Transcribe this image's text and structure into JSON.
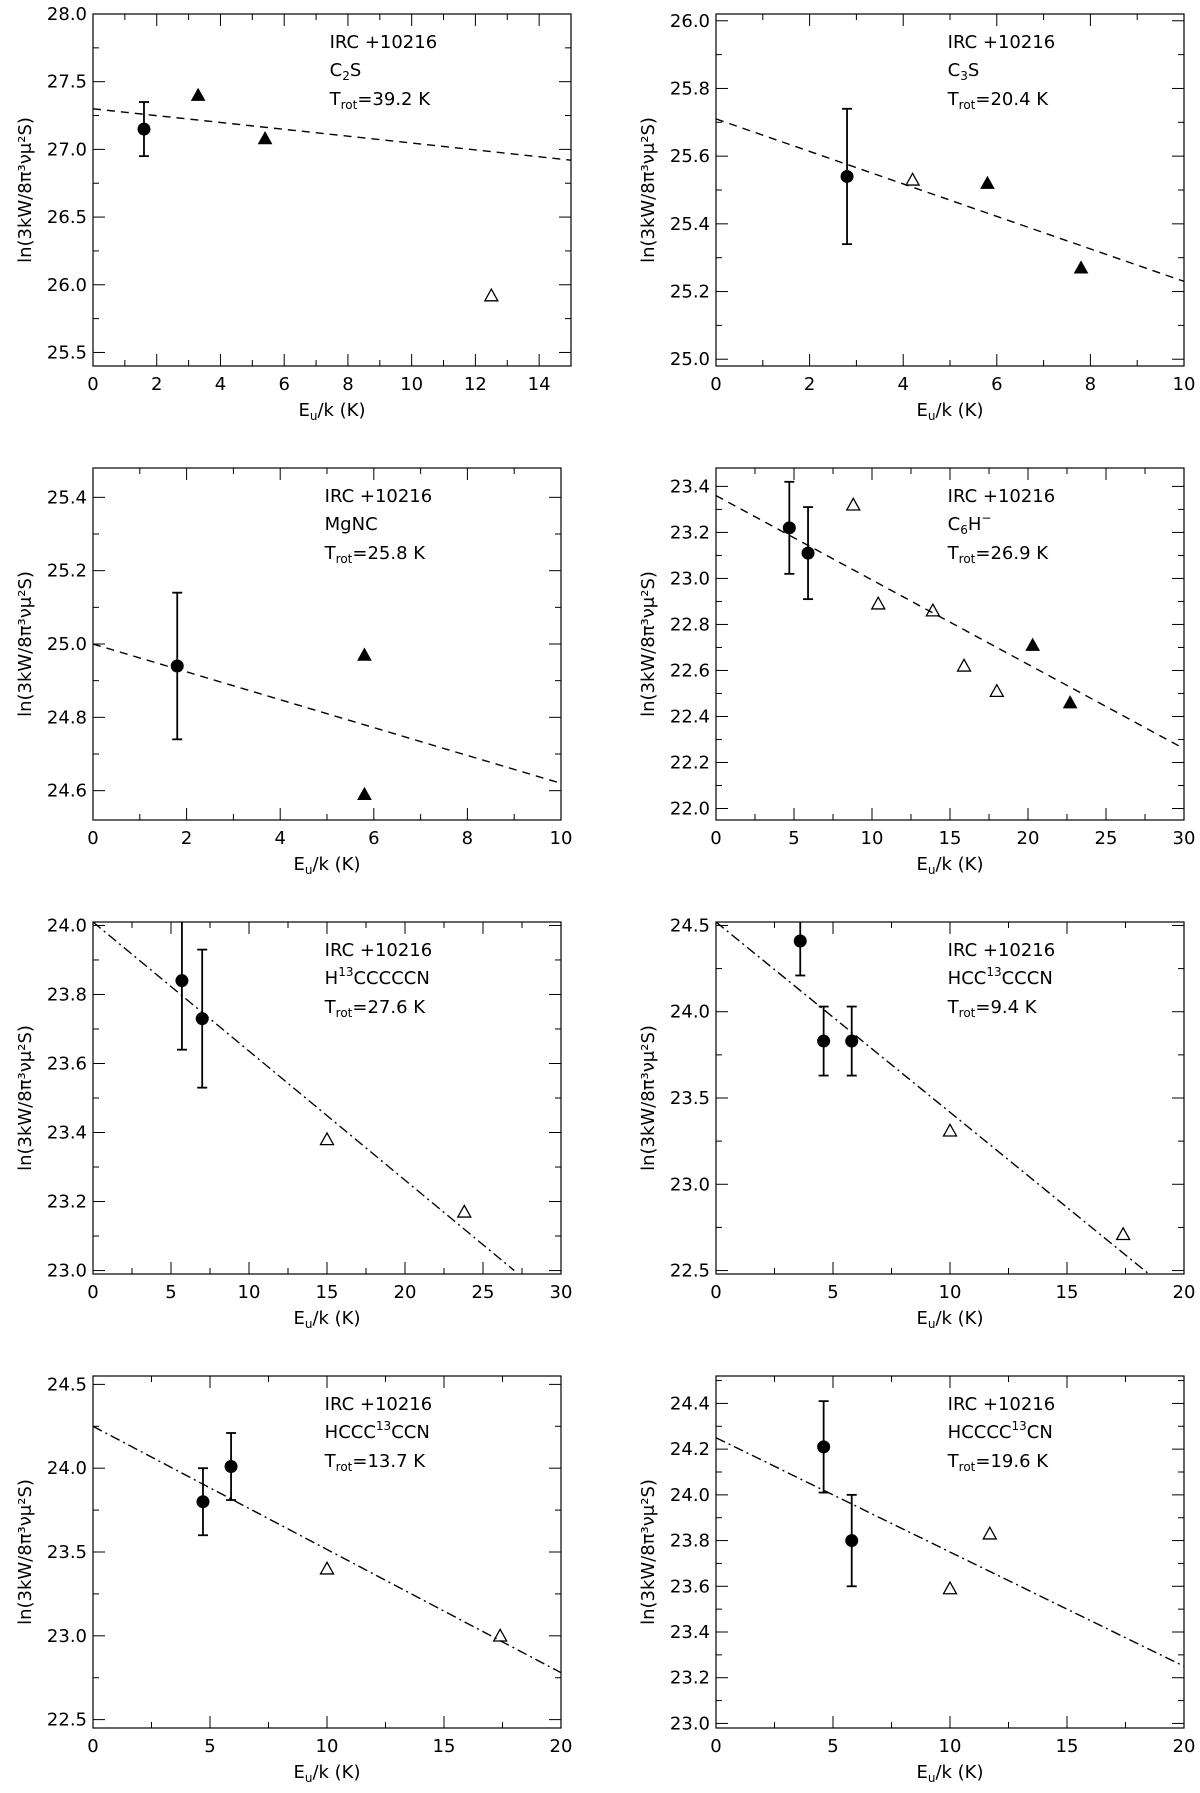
{
  "chart_data": [
    {
      "type": "scatter",
      "title": "",
      "source": "IRC +10216",
      "molecule": "C2S",
      "molecule_parts": [
        [
          "C",
          ""
        ],
        [
          "2",
          "sub"
        ],
        [
          "S",
          ""
        ]
      ],
      "trot_label": "=39.2 K",
      "xlabel_main": "E",
      "xlabel_sub": "u",
      "xlabel_rest": "/k (K)",
      "ylabel": "ln(3kW/8π³νμ²S)",
      "xlim": [
        0,
        15
      ],
      "ylim": [
        25.4,
        28.0
      ],
      "xticks": [
        0,
        2,
        4,
        6,
        8,
        10,
        12,
        14
      ],
      "yticks": [
        25.5,
        26.0,
        26.5,
        27.0,
        27.5,
        28.0
      ],
      "fit": {
        "style": "dashed",
        "points": [
          [
            0,
            27.3
          ],
          [
            15,
            26.92
          ]
        ]
      },
      "series": [
        {
          "name": "filled circles",
          "marker": "circle",
          "points": [
            [
              1.6,
              27.15,
              0.2
            ]
          ]
        },
        {
          "name": "filled triangles",
          "marker": "triangle-filled",
          "points": [
            [
              3.3,
              27.4
            ],
            [
              5.4,
              27.08
            ]
          ]
        },
        {
          "name": "open triangles",
          "marker": "triangle-open",
          "points": [
            [
              12.5,
              25.92
            ]
          ]
        }
      ]
    },
    {
      "type": "scatter",
      "title": "",
      "source": "IRC +10216",
      "molecule": "C3S",
      "molecule_parts": [
        [
          "C",
          ""
        ],
        [
          "3",
          "sub"
        ],
        [
          "S",
          ""
        ]
      ],
      "trot_label": "=20.4 K",
      "xlabel_main": "E",
      "xlabel_sub": "u",
      "xlabel_rest": "/k (K)",
      "ylabel": "ln(3kW/8π³νμ²S)",
      "xlim": [
        0,
        10
      ],
      "ylim": [
        24.98,
        26.02
      ],
      "xticks": [
        0,
        2,
        4,
        6,
        8,
        10
      ],
      "yticks": [
        25.0,
        25.2,
        25.4,
        25.6,
        25.8,
        26.0
      ],
      "fit": {
        "style": "dashed",
        "points": [
          [
            0,
            25.71
          ],
          [
            10,
            25.23
          ]
        ]
      },
      "series": [
        {
          "name": "filled circles",
          "marker": "circle",
          "points": [
            [
              2.8,
              25.54,
              0.2
            ]
          ]
        },
        {
          "name": "filled triangles",
          "marker": "triangle-filled",
          "points": [
            [
              5.8,
              25.52
            ],
            [
              7.8,
              25.27
            ]
          ]
        },
        {
          "name": "open triangles",
          "marker": "triangle-open",
          "points": [
            [
              4.2,
              25.53
            ]
          ]
        }
      ]
    },
    {
      "type": "scatter",
      "title": "",
      "source": "IRC +10216",
      "molecule": "MgNC",
      "molecule_parts": [
        [
          "MgNC",
          ""
        ]
      ],
      "trot_label": "=25.8 K",
      "xlabel_main": "E",
      "xlabel_sub": "u",
      "xlabel_rest": "/k (K)",
      "ylabel": "ln(3kW/8π³νμ²S)",
      "xlim": [
        0,
        10
      ],
      "ylim": [
        24.52,
        25.48
      ],
      "xticks": [
        0,
        2,
        4,
        6,
        8,
        10
      ],
      "yticks": [
        24.6,
        24.8,
        25.0,
        25.2,
        25.4
      ],
      "fit": {
        "style": "dashed",
        "points": [
          [
            0,
            25.0
          ],
          [
            10,
            24.62
          ]
        ]
      },
      "series": [
        {
          "name": "filled circles",
          "marker": "circle",
          "points": [
            [
              1.8,
              24.94,
              0.2
            ]
          ]
        },
        {
          "name": "filled triangles",
          "marker": "triangle-filled",
          "points": [
            [
              5.8,
              24.97
            ],
            [
              5.8,
              24.59
            ]
          ]
        },
        {
          "name": "open triangles",
          "marker": "triangle-open",
          "points": []
        }
      ]
    },
    {
      "type": "scatter",
      "title": "",
      "source": "IRC +10216",
      "molecule": "C6H-",
      "molecule_parts": [
        [
          "C",
          ""
        ],
        [
          "6",
          "sub"
        ],
        [
          "H",
          ""
        ],
        [
          "−",
          "sup"
        ]
      ],
      "trot_label": "=26.9 K",
      "xlabel_main": "E",
      "xlabel_sub": "u",
      "xlabel_rest": "/k (K)",
      "ylabel": "ln(3kW/8π³νμ²S)",
      "xlim": [
        0,
        30
      ],
      "ylim": [
        21.95,
        23.48
      ],
      "xticks": [
        0,
        5,
        10,
        15,
        20,
        25,
        30
      ],
      "yticks": [
        22.0,
        22.2,
        22.4,
        22.6,
        22.8,
        23.0,
        23.2,
        23.4
      ],
      "fit": {
        "style": "dashed",
        "points": [
          [
            0,
            23.36
          ],
          [
            30,
            22.26
          ]
        ]
      },
      "series": [
        {
          "name": "filled circles",
          "marker": "circle",
          "points": [
            [
              4.7,
              23.22,
              0.2
            ],
            [
              5.9,
              23.11,
              0.2
            ]
          ]
        },
        {
          "name": "filled triangles",
          "marker": "triangle-filled",
          "points": [
            [
              20.3,
              22.71
            ],
            [
              22.7,
              22.46
            ]
          ]
        },
        {
          "name": "open triangles",
          "marker": "triangle-open",
          "points": [
            [
              8.8,
              23.32
            ],
            [
              10.4,
              22.89
            ],
            [
              13.9,
              22.86
            ],
            [
              15.9,
              22.62
            ],
            [
              18.0,
              22.51
            ]
          ]
        }
      ]
    },
    {
      "type": "scatter",
      "title": "",
      "source": "IRC +10216",
      "molecule": "H13CCCCCN",
      "molecule_parts": [
        [
          "H",
          ""
        ],
        [
          "13",
          "sup"
        ],
        [
          "CCCCCN",
          ""
        ]
      ],
      "trot_label": "=27.6 K",
      "xlabel_main": "E",
      "xlabel_sub": "u",
      "xlabel_rest": "/k (K)",
      "ylabel": "ln(3kW/8π³νμ²S)",
      "xlim": [
        0,
        30
      ],
      "ylim": [
        22.99,
        24.01
      ],
      "xticks": [
        0,
        5,
        10,
        15,
        20,
        25,
        30
      ],
      "yticks": [
        23.0,
        23.2,
        23.4,
        23.6,
        23.8,
        24.0
      ],
      "fit": {
        "style": "dashdot",
        "points": [
          [
            0,
            24.01
          ],
          [
            27.0,
            23.0
          ]
        ]
      },
      "series": [
        {
          "name": "filled circles",
          "marker": "circle",
          "points": [
            [
              5.7,
              23.84,
              0.2
            ],
            [
              7.0,
              23.73,
              0.2
            ]
          ]
        },
        {
          "name": "filled triangles",
          "marker": "triangle-filled",
          "points": []
        },
        {
          "name": "open triangles",
          "marker": "triangle-open",
          "points": [
            [
              15.0,
              23.38
            ],
            [
              23.8,
              23.17
            ]
          ]
        }
      ]
    },
    {
      "type": "scatter",
      "title": "",
      "source": "IRC +10216",
      "molecule": "HCC13CCCN",
      "molecule_parts": [
        [
          "HCC",
          ""
        ],
        [
          "13",
          "sup"
        ],
        [
          "CCCN",
          ""
        ]
      ],
      "trot_label": "=9.4 K",
      "xlabel_main": "E",
      "xlabel_sub": "u",
      "xlabel_rest": "/k (K)",
      "ylabel": "ln(3kW/8π³νμ²S)",
      "xlim": [
        0,
        20
      ],
      "ylim": [
        22.48,
        24.52
      ],
      "xticks": [
        0,
        5,
        10,
        15,
        20
      ],
      "yticks": [
        22.5,
        23.0,
        23.5,
        24.0,
        24.5
      ],
      "fit": {
        "style": "dashdot",
        "points": [
          [
            0,
            24.52
          ],
          [
            18.5,
            22.48
          ]
        ]
      },
      "series": [
        {
          "name": "filled circles",
          "marker": "circle",
          "points": [
            [
              3.6,
              24.41,
              0.2
            ],
            [
              4.6,
              23.83,
              0.2
            ],
            [
              5.8,
              23.83,
              0.2
            ]
          ]
        },
        {
          "name": "filled triangles",
          "marker": "triangle-filled",
          "points": []
        },
        {
          "name": "open triangles",
          "marker": "triangle-open",
          "points": [
            [
              10.0,
              23.31
            ],
            [
              17.4,
              22.71
            ]
          ]
        }
      ]
    },
    {
      "type": "scatter",
      "title": "",
      "source": "IRC +10216",
      "molecule": "HCCC13CCN",
      "molecule_parts": [
        [
          "HCCC",
          ""
        ],
        [
          "13",
          "sup"
        ],
        [
          "CCN",
          ""
        ]
      ],
      "trot_label": "=13.7 K",
      "xlabel_main": "E",
      "xlabel_sub": "u",
      "xlabel_rest": "/k (K)",
      "ylabel": "ln(3kW/8π³νμ²S)",
      "xlim": [
        0,
        20
      ],
      "ylim": [
        22.45,
        24.55
      ],
      "xticks": [
        0,
        5,
        10,
        15,
        20
      ],
      "yticks": [
        22.5,
        23.0,
        23.5,
        24.0,
        24.5
      ],
      "fit": {
        "style": "dashdot",
        "points": [
          [
            0,
            24.25
          ],
          [
            20,
            22.78
          ]
        ]
      },
      "series": [
        {
          "name": "filled circles",
          "marker": "circle",
          "points": [
            [
              4.7,
              23.8,
              0.2
            ],
            [
              5.9,
              24.01,
              0.2
            ]
          ]
        },
        {
          "name": "filled triangles",
          "marker": "triangle-filled",
          "points": []
        },
        {
          "name": "open triangles",
          "marker": "triangle-open",
          "points": [
            [
              10.0,
              23.4
            ],
            [
              17.4,
              23.0
            ]
          ]
        }
      ]
    },
    {
      "type": "scatter",
      "title": "",
      "source": "IRC +10216",
      "molecule": "HCCCC13CN",
      "molecule_parts": [
        [
          "HCCCC",
          ""
        ],
        [
          "13",
          "sup"
        ],
        [
          "CN",
          ""
        ]
      ],
      "trot_label": "=19.6 K",
      "xlabel_main": "E",
      "xlabel_sub": "u",
      "xlabel_rest": "/k (K)",
      "ylabel": "ln(3kW/8π³νμ²S)",
      "xlim": [
        0,
        20
      ],
      "ylim": [
        22.98,
        24.52
      ],
      "xticks": [
        0,
        5,
        10,
        15,
        20
      ],
      "yticks": [
        23.0,
        23.2,
        23.4,
        23.6,
        23.8,
        24.0,
        24.2,
        24.4
      ],
      "fit": {
        "style": "dashdot",
        "points": [
          [
            0,
            24.25
          ],
          [
            20,
            23.25
          ]
        ]
      },
      "series": [
        {
          "name": "filled circles",
          "marker": "circle",
          "points": [
            [
              4.6,
              24.21,
              0.2
            ],
            [
              5.8,
              23.8,
              0.2
            ]
          ]
        },
        {
          "name": "filled triangles",
          "marker": "triangle-filled",
          "points": []
        },
        {
          "name": "open triangles",
          "marker": "triangle-open",
          "points": [
            [
              10.0,
              23.59
            ],
            [
              11.7,
              23.83
            ]
          ]
        }
      ]
    }
  ]
}
